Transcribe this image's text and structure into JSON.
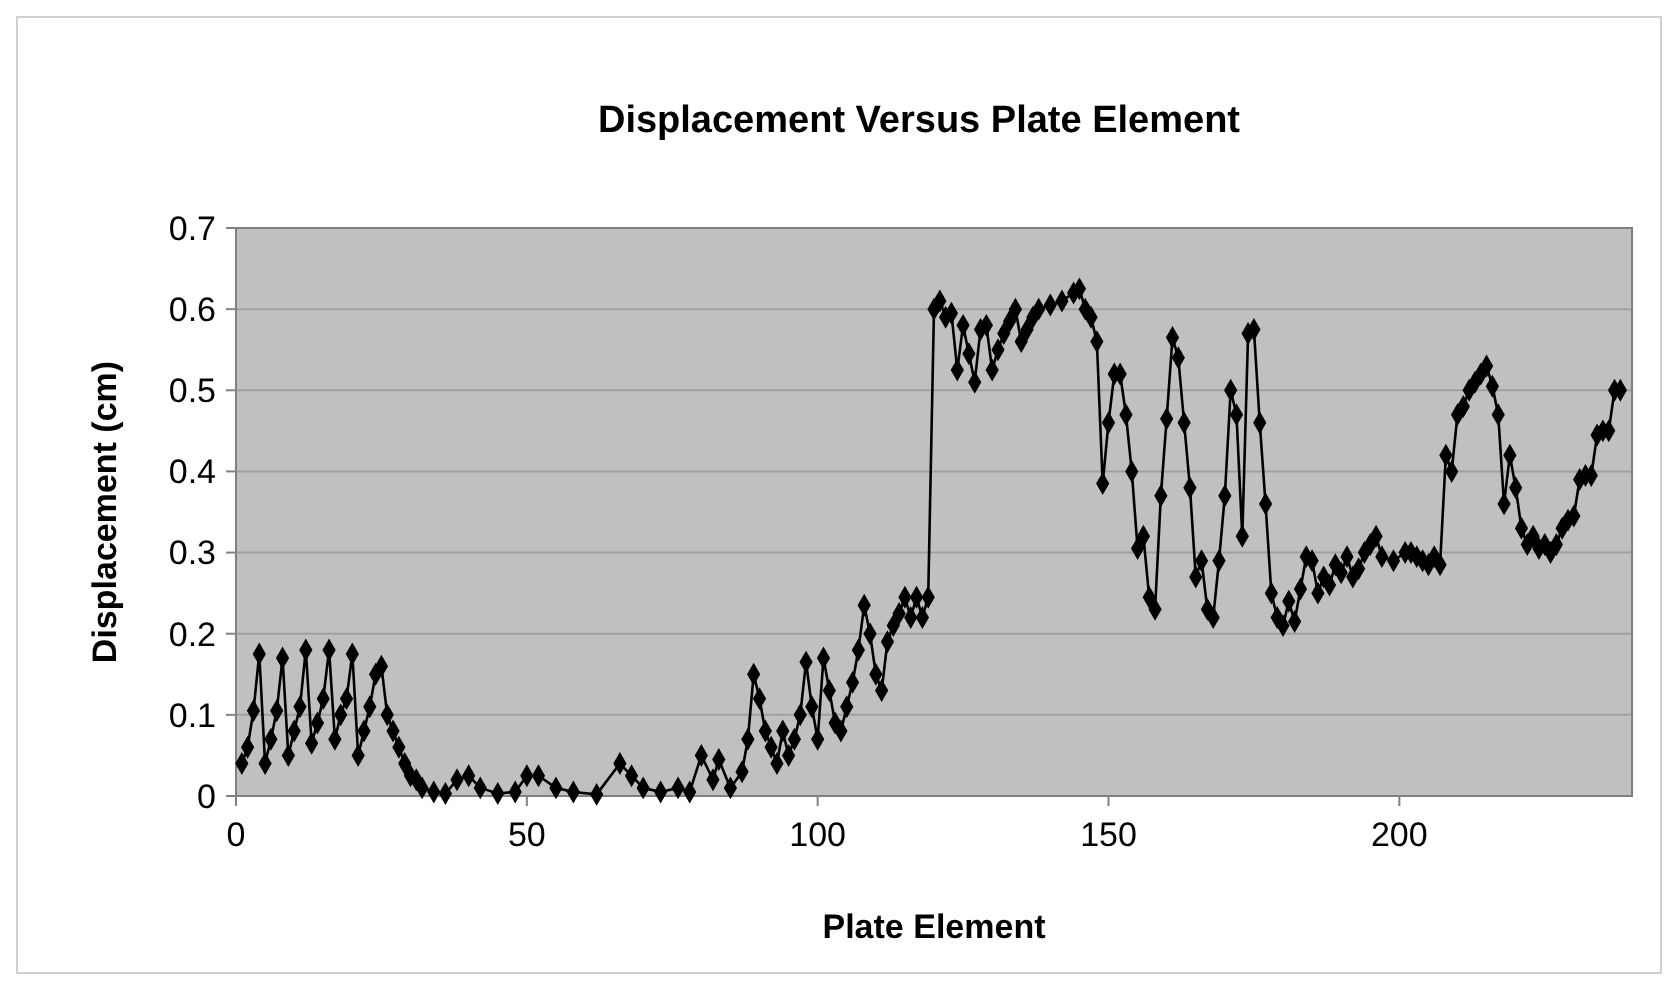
{
  "chart_data": {
    "type": "line",
    "title": "Displacement Versus Plate Element",
    "xlabel": "Plate Element",
    "ylabel": "Displacement (cm)",
    "xlim": [
      0,
      240
    ],
    "xticks": [
      0,
      50,
      100,
      150,
      200
    ],
    "ylim": [
      0,
      0.7
    ],
    "yticks": [
      0,
      0.1,
      0.2,
      0.3,
      0.4,
      0.5,
      0.6,
      0.7
    ],
    "grid": "y",
    "marker": "diamond",
    "line_style": "solid",
    "series": [
      {
        "color": "#000000",
        "x": [
          1,
          2,
          3,
          4,
          5,
          6,
          7,
          8,
          9,
          10,
          11,
          12,
          13,
          14,
          15,
          16,
          17,
          18,
          19,
          20,
          21,
          22,
          23,
          24,
          25,
          26,
          27,
          28,
          29,
          30,
          31,
          32,
          34,
          36,
          38,
          40,
          42,
          45,
          48,
          50,
          52,
          55,
          58,
          62,
          66,
          68,
          70,
          73,
          76,
          78,
          80,
          82,
          83,
          85,
          87,
          88,
          89,
          90,
          91,
          92,
          93,
          94,
          95,
          96,
          97,
          98,
          99,
          100,
          101,
          102,
          103,
          104,
          105,
          106,
          107,
          108,
          109,
          110,
          111,
          112,
          113,
          114,
          115,
          116,
          117,
          118,
          119,
          120,
          121,
          122,
          123,
          124,
          125,
          126,
          127,
          128,
          129,
          130,
          131,
          132,
          133,
          134,
          135,
          136,
          137,
          138,
          140,
          142,
          144,
          145,
          146,
          147,
          148,
          149,
          150,
          151,
          152,
          153,
          154,
          155,
          156,
          157,
          158,
          159,
          160,
          161,
          162,
          163,
          164,
          165,
          166,
          167,
          168,
          169,
          170,
          171,
          172,
          173,
          174,
          175,
          176,
          177,
          178,
          179,
          180,
          181,
          182,
          183,
          184,
          185,
          186,
          187,
          188,
          189,
          190,
          191,
          192,
          193,
          194,
          195,
          196,
          197,
          199,
          201,
          202,
          203,
          204,
          205,
          206,
          207,
          208,
          209,
          210,
          211,
          212,
          213,
          214,
          215,
          216,
          217,
          218,
          219,
          220,
          221,
          222,
          223,
          224,
          225,
          226,
          227,
          228,
          229,
          230,
          231,
          232,
          233,
          234,
          235,
          236,
          237,
          238
        ],
        "values": [
          0.04,
          0.06,
          0.105,
          0.175,
          0.04,
          0.07,
          0.105,
          0.17,
          0.05,
          0.08,
          0.11,
          0.18,
          0.065,
          0.09,
          0.12,
          0.18,
          0.07,
          0.1,
          0.12,
          0.175,
          0.05,
          0.08,
          0.11,
          0.15,
          0.16,
          0.1,
          0.08,
          0.06,
          0.04,
          0.025,
          0.02,
          0.01,
          0.005,
          0.003,
          0.02,
          0.025,
          0.01,
          0.003,
          0.005,
          0.025,
          0.025,
          0.01,
          0.005,
          0.002,
          0.04,
          0.025,
          0.01,
          0.005,
          0.01,
          0.005,
          0.05,
          0.02,
          0.045,
          0.01,
          0.03,
          0.07,
          0.15,
          0.12,
          0.08,
          0.06,
          0.04,
          0.08,
          0.05,
          0.07,
          0.1,
          0.165,
          0.11,
          0.07,
          0.17,
          0.13,
          0.09,
          0.08,
          0.11,
          0.14,
          0.18,
          0.235,
          0.2,
          0.15,
          0.13,
          0.19,
          0.21,
          0.225,
          0.245,
          0.22,
          0.245,
          0.22,
          0.245,
          0.6,
          0.61,
          0.59,
          0.595,
          0.525,
          0.58,
          0.545,
          0.51,
          0.575,
          0.58,
          0.525,
          0.55,
          0.57,
          0.585,
          0.6,
          0.56,
          0.575,
          0.59,
          0.6,
          0.605,
          0.61,
          0.62,
          0.625,
          0.6,
          0.59,
          0.56,
          0.385,
          0.46,
          0.52,
          0.52,
          0.47,
          0.4,
          0.305,
          0.32,
          0.245,
          0.23,
          0.37,
          0.465,
          0.565,
          0.54,
          0.46,
          0.38,
          0.27,
          0.29,
          0.23,
          0.22,
          0.29,
          0.37,
          0.5,
          0.47,
          0.32,
          0.57,
          0.575,
          0.46,
          0.36,
          0.25,
          0.22,
          0.21,
          0.24,
          0.215,
          0.255,
          0.295,
          0.29,
          0.25,
          0.27,
          0.26,
          0.285,
          0.275,
          0.295,
          0.27,
          0.28,
          0.3,
          0.31,
          0.32,
          0.295,
          0.29,
          0.3,
          0.3,
          0.295,
          0.29,
          0.285,
          0.295,
          0.285,
          0.42,
          0.4,
          0.47,
          0.48,
          0.5,
          0.51,
          0.52,
          0.53,
          0.505,
          0.47,
          0.36,
          0.42,
          0.38,
          0.33,
          0.31,
          0.32,
          0.305,
          0.31,
          0.3,
          0.31,
          0.33,
          0.34,
          0.345,
          0.39,
          0.395,
          0.395,
          0.445,
          0.45,
          0.45,
          0.5,
          0.5
        ]
      }
    ]
  }
}
